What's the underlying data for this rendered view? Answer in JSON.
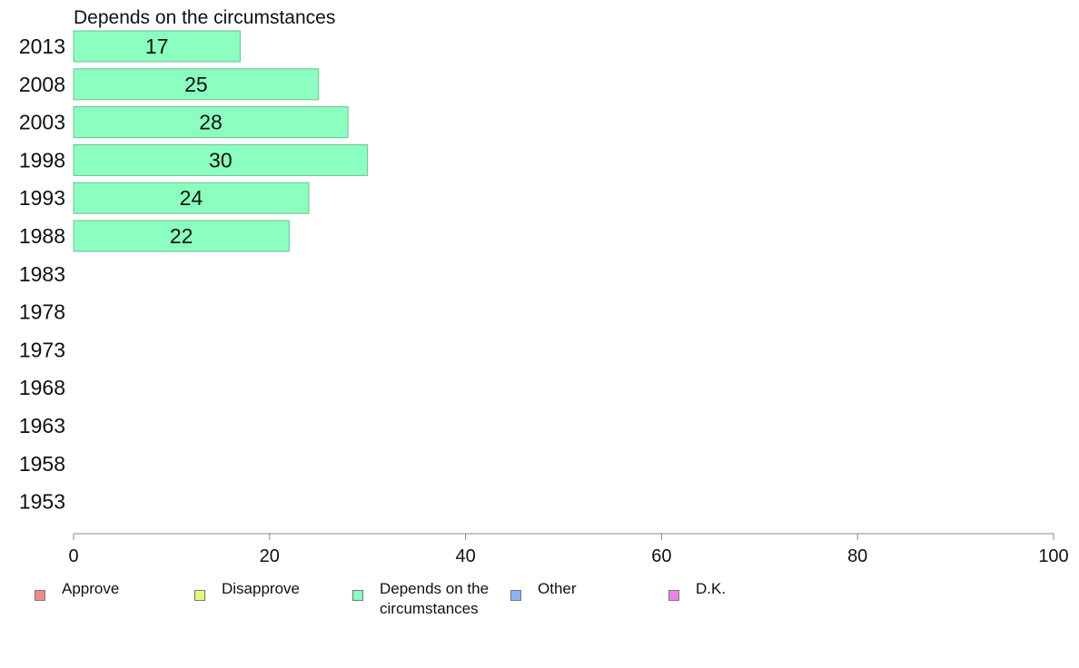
{
  "chart_data": {
    "type": "bar",
    "orientation": "horizontal",
    "title": "Depends on the circumstances",
    "categories": [
      "2013",
      "2008",
      "2003",
      "1998",
      "1993",
      "1988",
      "1983",
      "1978",
      "1973",
      "1968",
      "1963",
      "1958",
      "1953"
    ],
    "series": [
      {
        "name": "Depends on the circumstances",
        "values": [
          17,
          25,
          28,
          30,
          24,
          22,
          null,
          null,
          null,
          null,
          null,
          null,
          null
        ],
        "labels": [
          "17",
          "25",
          "28",
          "30",
          "24",
          "22",
          "",
          "",
          "",
          "",
          "",
          "",
          ""
        ],
        "color": "#8affbf"
      }
    ],
    "xlim": [
      0,
      100
    ],
    "xticks": [
      "0",
      "20",
      "40",
      "60",
      "80",
      "100"
    ],
    "grid": false
  },
  "legend": {
    "items": [
      {
        "label": "Approve",
        "color": "#f28b82"
      },
      {
        "label": "Disapprove",
        "color": "#e6f77a"
      },
      {
        "label": "Depends on the circumstances",
        "color": "#8affbf"
      },
      {
        "label": "Other",
        "color": "#8ab4f8"
      },
      {
        "label": "D.K.",
        "color": "#ee82ee"
      }
    ]
  },
  "colors": {
    "bar_stroke": "#6fbf91",
    "axis": "#888888"
  }
}
